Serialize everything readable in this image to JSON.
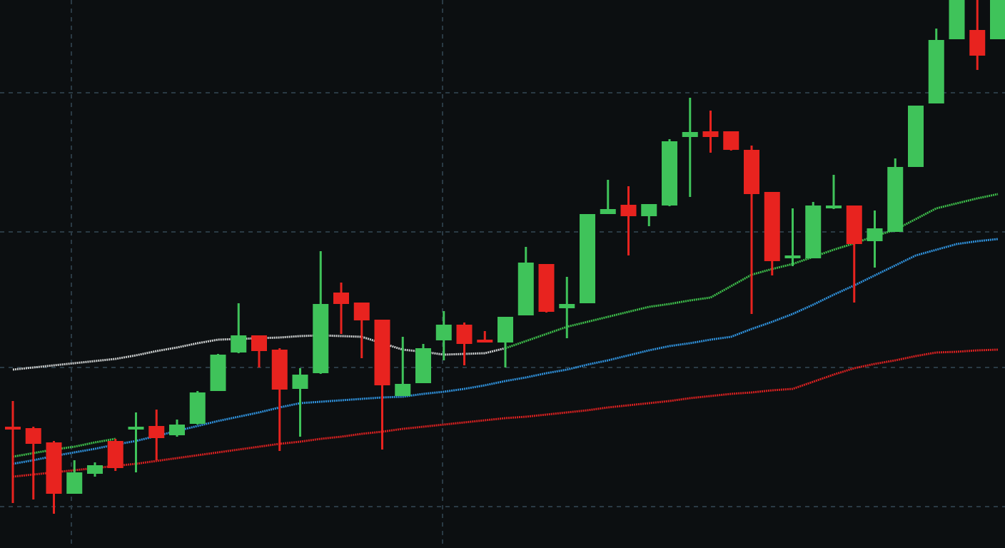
{
  "chart_data": {
    "type": "candlestick",
    "categories": [
      null,
      null,
      null,
      null,
      null,
      null,
      null,
      null,
      null,
      null,
      null,
      null,
      null,
      null,
      null,
      null,
      null,
      null,
      null,
      null,
      null,
      null,
      null,
      null,
      null,
      null,
      null,
      null,
      null,
      null,
      null,
      null,
      null,
      null,
      null,
      null,
      null,
      null,
      null,
      null,
      null,
      null,
      null,
      null,
      null,
      null,
      null,
      null,
      null
    ],
    "open": [
      170,
      168,
      148,
      76,
      104,
      150,
      166,
      171,
      158,
      174,
      220,
      274,
      298,
      278,
      223,
      245,
      358,
      344,
      320,
      213,
      231,
      291,
      313,
      292,
      288,
      326,
      398,
      336,
      343,
      468,
      481,
      465,
      480,
      576,
      584,
      584,
      558,
      499,
      406,
      406,
      476,
      480,
      430,
      443,
      534,
      623,
      713,
      726,
      713
    ],
    "high": [
      206,
      170,
      150,
      123,
      120,
      153,
      190,
      194,
      180,
      220,
      272,
      343,
      298,
      280,
      252,
      416,
      372,
      344,
      320,
      296,
      286,
      332,
      316,
      304,
      324,
      422,
      398,
      380,
      468,
      516,
      507,
      482,
      573,
      631,
      613,
      584,
      564,
      499,
      476,
      485,
      523,
      480,
      473,
      546,
      620,
      728,
      768,
      768,
      768
    ],
    "low": [
      63,
      68,
      48,
      76,
      100,
      108,
      106,
      123,
      156,
      173,
      220,
      273,
      253,
      136,
      156,
      244,
      300,
      266,
      138,
      213,
      231,
      263,
      256,
      288,
      253,
      326,
      330,
      294,
      343,
      468,
      410,
      451,
      479,
      492,
      554,
      557,
      328,
      382,
      395,
      406,
      475,
      344,
      393,
      443,
      534,
      623,
      713,
      670,
      713
    ],
    "close": [
      166,
      146,
      76,
      106,
      116,
      112,
      170,
      154,
      173,
      218,
      271,
      298,
      276,
      222,
      243,
      342,
      342,
      319,
      228,
      230,
      280,
      313,
      286,
      288,
      324,
      400,
      331,
      342,
      468,
      475,
      465,
      482,
      570,
      583,
      576,
      558,
      496,
      402,
      410,
      480,
      480,
      426,
      448,
      534,
      620,
      712,
      768,
      690,
      768
    ],
    "up_color": "#3fc35a",
    "down_color": "#e8231f",
    "lines": [
      {
        "color": "#c9cccc",
        "values": [
          250,
          253,
          256,
          259,
          262,
          265,
          270,
          276,
          281,
          287,
          292,
          293,
          294,
          295,
          297,
          298,
          297,
          296,
          287,
          278,
          275,
          271,
          272,
          273,
          280,
          null,
          null,
          null,
          null,
          null,
          null,
          null,
          null,
          null,
          null,
          null,
          null,
          null,
          null,
          null,
          null,
          null,
          null,
          null,
          null,
          null,
          null,
          null,
          null
        ]
      },
      {
        "color": "#3dbb4a",
        "values": [
          128,
          133,
          138,
          142,
          148,
          153,
          null,
          null,
          null,
          null,
          null,
          null,
          null,
          null,
          null,
          null,
          null,
          null,
          null,
          null,
          null,
          null,
          null,
          null,
          280,
          290,
          300,
          310,
          317,
          324,
          331,
          338,
          342,
          347,
          351,
          367,
          383,
          391,
          398,
          408,
          418,
          427,
          437,
          446,
          461,
          476,
          483,
          490,
          496
        ]
      },
      {
        "color": "#2f8fd8",
        "values": [
          118,
          123,
          129,
          134,
          139,
          145,
          150,
          157,
          164,
          171,
          178,
          184,
          190,
          197,
          203,
          205,
          207,
          209,
          211,
          212,
          216,
          219,
          223,
          228,
          234,
          239,
          245,
          250,
          257,
          263,
          270,
          277,
          283,
          287,
          292,
          296,
          307,
          317,
          328,
          341,
          355,
          368,
          382,
          396,
          410,
          418,
          426,
          430,
          433
        ]
      },
      {
        "color": "#d42020",
        "values": [
          100,
          103,
          106,
          109,
          112,
          115,
          118,
          122,
          126,
          130,
          134,
          138,
          142,
          146,
          149,
          153,
          156,
          160,
          163,
          167,
          170,
          173,
          176,
          179,
          182,
          184,
          187,
          190,
          193,
          197,
          200,
          203,
          206,
          210,
          213,
          216,
          218,
          221,
          223,
          233,
          243,
          252,
          258,
          263,
          269,
          274,
          275,
          277,
          278
        ]
      }
    ],
    "ylim": [
      0,
      768
    ],
    "yticks": [
      58,
      253,
      443,
      638
    ],
    "grid": true
  }
}
